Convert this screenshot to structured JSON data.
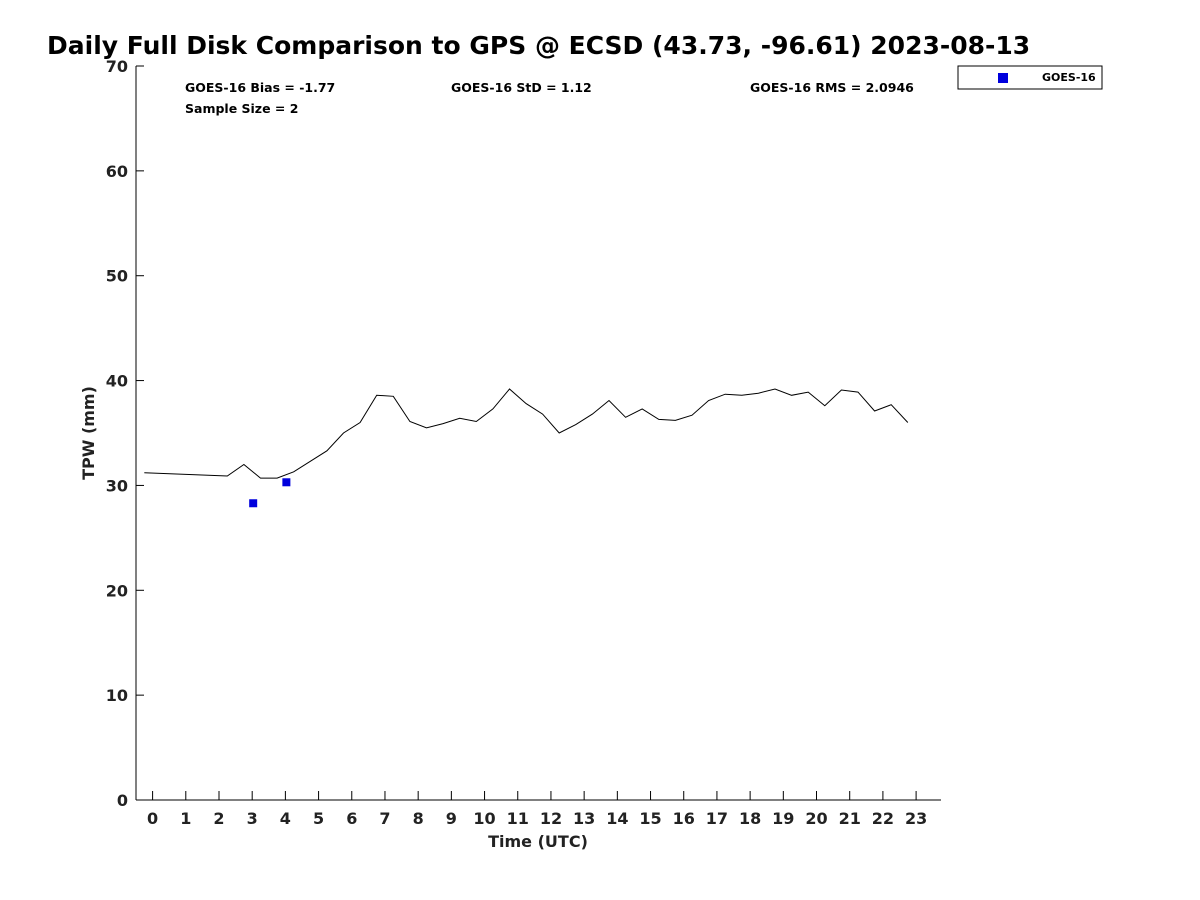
{
  "chart_data": {
    "type": "line",
    "title": "Daily Full Disk Comparison to GPS @ ECSD (43.73, -96.61) 2023-08-13",
    "xlabel": "Time (UTC)",
    "ylabel": "TPW (mm)",
    "xlim": [
      -0.5,
      23.75
    ],
    "ylim": [
      0,
      70
    ],
    "xticks": [
      "0",
      "1",
      "2",
      "3",
      "4",
      "5",
      "6",
      "7",
      "8",
      "9",
      "10",
      "11",
      "12",
      "13",
      "14",
      "15",
      "16",
      "17",
      "18",
      "19",
      "20",
      "21",
      "22",
      "23"
    ],
    "yticks": [
      "0",
      "10",
      "20",
      "30",
      "40",
      "50",
      "60",
      "70"
    ],
    "grid": false,
    "legend_position": "top-right, outside plot",
    "stats": {
      "bias": "GOES-16 Bias = -1.77",
      "std": "GOES-16 StD = 1.12",
      "rms": "GOES-16 RMS = 2.0946",
      "sample": "Sample Size = 2"
    },
    "series": [
      {
        "kind": "line",
        "color": "#000000",
        "points": [
          [
            -0.25,
            31.2
          ],
          [
            2.25,
            30.9
          ],
          [
            2.75,
            32.0
          ],
          [
            3.25,
            30.7
          ],
          [
            3.75,
            30.7
          ],
          [
            4.25,
            31.3
          ],
          [
            4.75,
            32.3
          ],
          [
            5.25,
            33.3
          ],
          [
            5.75,
            35.0
          ],
          [
            6.25,
            36.0
          ],
          [
            6.75,
            38.6
          ],
          [
            7.25,
            38.5
          ],
          [
            7.75,
            36.1
          ],
          [
            8.25,
            35.5
          ],
          [
            8.75,
            35.9
          ],
          [
            9.25,
            36.4
          ],
          [
            9.75,
            36.1
          ],
          [
            10.25,
            37.3
          ],
          [
            10.75,
            39.2
          ],
          [
            11.25,
            37.8
          ],
          [
            11.75,
            36.8
          ],
          [
            12.25,
            35.0
          ],
          [
            12.75,
            35.8
          ],
          [
            13.25,
            36.8
          ],
          [
            13.75,
            38.1
          ],
          [
            14.25,
            36.5
          ],
          [
            14.75,
            37.3
          ],
          [
            15.25,
            36.3
          ],
          [
            15.75,
            36.2
          ],
          [
            16.25,
            36.7
          ],
          [
            16.75,
            38.1
          ],
          [
            17.25,
            38.7
          ],
          [
            17.75,
            38.6
          ],
          [
            18.25,
            38.8
          ],
          [
            18.75,
            39.2
          ],
          [
            19.25,
            38.6
          ],
          [
            19.75,
            38.9
          ],
          [
            20.25,
            37.6
          ],
          [
            20.75,
            39.1
          ],
          [
            21.25,
            38.9
          ],
          [
            21.75,
            37.1
          ],
          [
            22.25,
            37.7
          ],
          [
            22.75,
            36.0
          ]
        ]
      },
      {
        "kind": "scatter",
        "name": "GOES-16",
        "color": "#0000dd",
        "points": [
          [
            3.03,
            28.3
          ],
          [
            4.03,
            30.3
          ]
        ]
      }
    ]
  }
}
